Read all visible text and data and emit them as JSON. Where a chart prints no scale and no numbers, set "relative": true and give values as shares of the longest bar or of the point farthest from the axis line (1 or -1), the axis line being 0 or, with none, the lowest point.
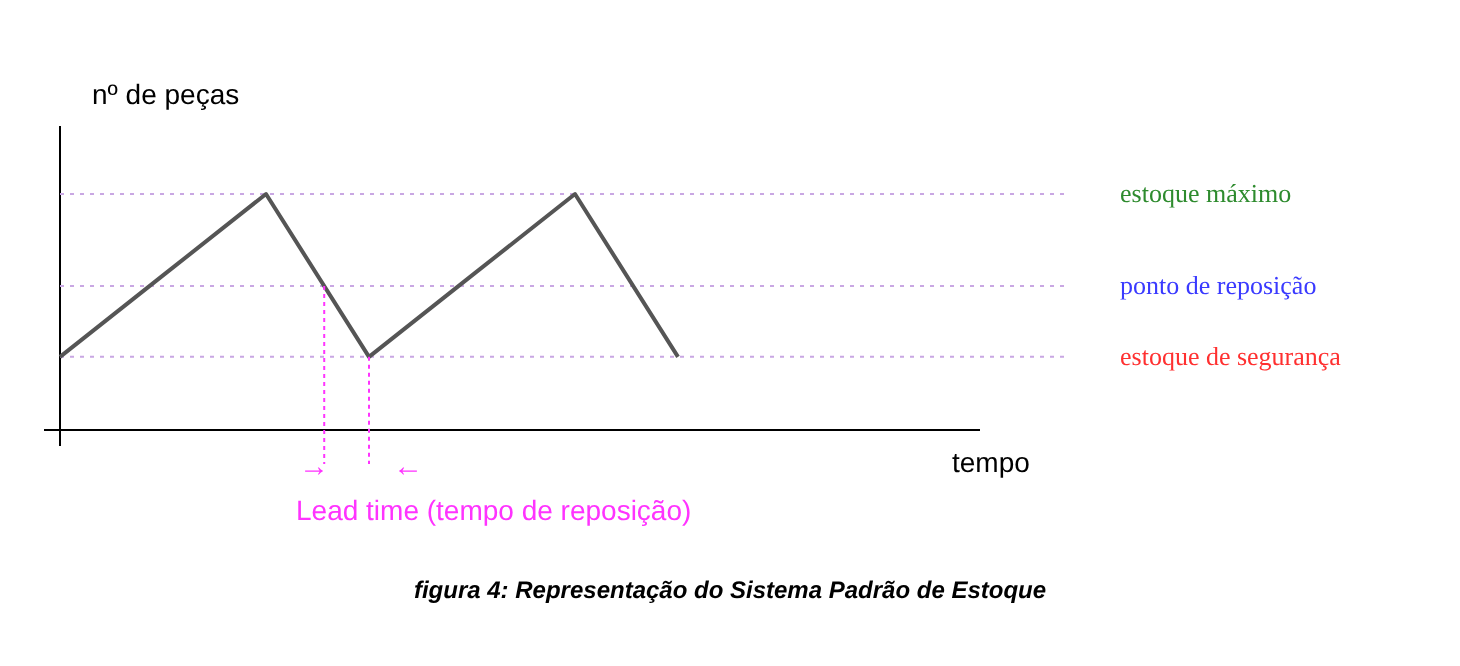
{
  "chart_data": {
    "type": "line",
    "relative": true,
    "ylabel": "nº de peças",
    "xlabel": "tempo",
    "marker": "none",
    "line_style": "solid",
    "categories": [
      null,
      null,
      null,
      null,
      null,
      null,
      null,
      null,
      null
    ],
    "series": [
      {
        "color": "#555555",
        "values": [
          0.31,
          0.655,
          1,
          0.31,
          0.655,
          1,
          0.31,
          null,
          null
        ]
      }
    ],
    "ref_lines": [
      {
        "axis": "y",
        "value": 1,
        "label": "estoque máximo",
        "color": "#c9a7e3",
        "line_style": "dotted"
      },
      {
        "axis": "y",
        "value": 0.61,
        "label": "ponto de reposição",
        "color": "#c9a7e3",
        "line_style": "dotted"
      },
      {
        "axis": "y",
        "value": 0.31,
        "label": "estoque de segurança",
        "color": "#c9a7e3",
        "line_style": "dotted"
      }
    ],
    "annotations": [
      "→",
      "←",
      "Lead time (tempo de reposição)",
      "figura 4: Representação do Sistema Padrão de Estoque"
    ]
  }
}
